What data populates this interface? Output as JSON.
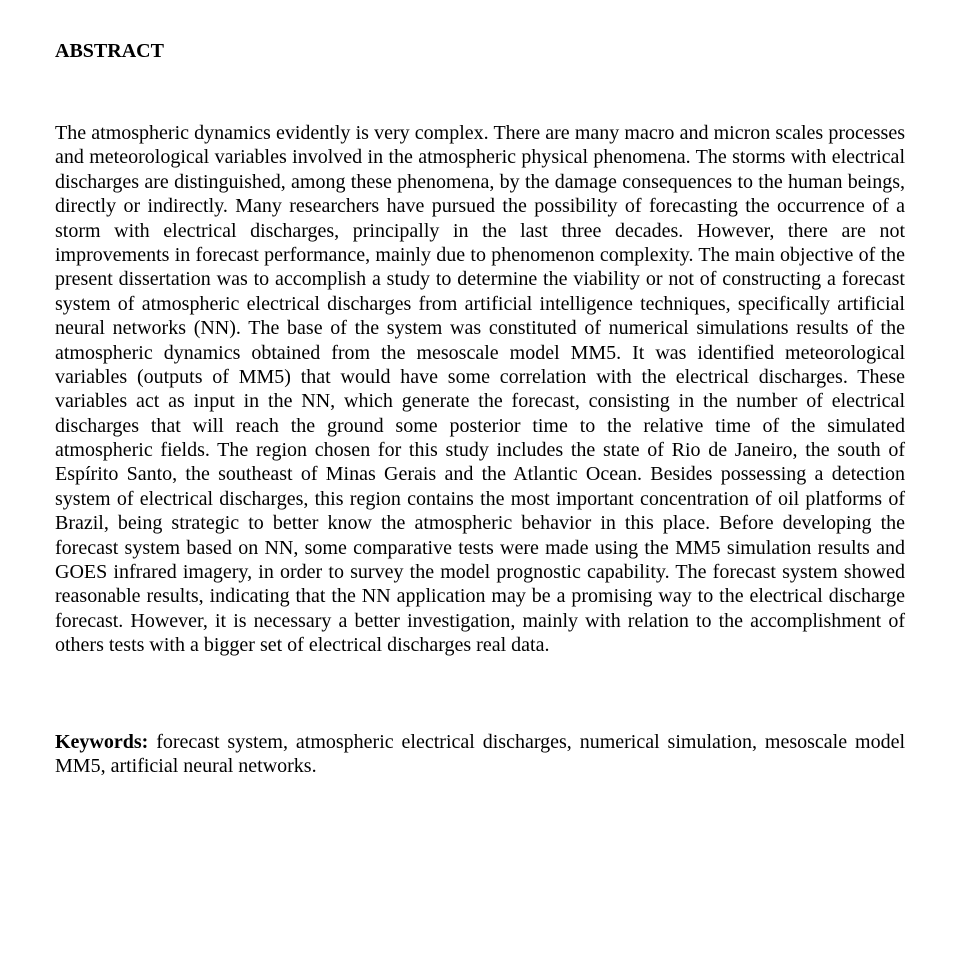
{
  "abstract": {
    "heading": "ABSTRACT",
    "body": "The atmospheric dynamics evidently is very complex. There are many macro and micron scales processes and meteorological variables involved in the atmospheric physical phenomena. The storms with electrical discharges are distinguished, among these phenomena, by the damage consequences to the human beings, directly or indirectly. Many researchers have pursued the possibility of forecasting the occurrence of a storm with electrical discharges, principally in the last three decades. However, there are not improvements in forecast performance, mainly due to phenomenon complexity. The main objective of the present dissertation was to accomplish a study to determine the viability or not of constructing a forecast system of atmospheric electrical discharges from artificial intelligence techniques, specifically artificial neural networks (NN). The base of the system was constituted of numerical simulations results of the atmospheric dynamics obtained from the mesoscale model MM5. It was identified meteorological variables (outputs of MM5) that would have some correlation with the electrical discharges. These variables act as input in the NN, which generate the forecast, consisting in the number of electrical discharges that will reach the ground some posterior time to the relative time of the simulated atmospheric fields. The region chosen for this study includes the state of Rio de Janeiro, the south of Espírito Santo, the southeast of Minas Gerais and the Atlantic Ocean. Besides possessing a detection system of electrical discharges, this region contains the most important concentration of oil platforms of Brazil, being strategic to better know the atmospheric behavior in this place. Before developing the forecast system based on NN, some comparative tests were made using the MM5 simulation results and GOES infrared imagery, in order to survey the model prognostic capability. The forecast system showed reasonable results, indicating that the NN application may be a promising way to the electrical discharge forecast. However, it is necessary a better investigation, mainly with relation to the accomplishment of others tests with a bigger set of electrical discharges real data."
  },
  "keywords": {
    "label": "Keywords:",
    "text": " forecast system, atmospheric electrical discharges, numerical simulation, mesoscale model MM5, artificial neural networks."
  },
  "style": {
    "font_family": "Times New Roman",
    "font_size_pt": 15,
    "text_color": "#000000",
    "background_color": "#ffffff",
    "heading_weight": "bold",
    "keywords_label_weight": "bold",
    "text_align_body": "justify",
    "line_height": 1.22
  }
}
